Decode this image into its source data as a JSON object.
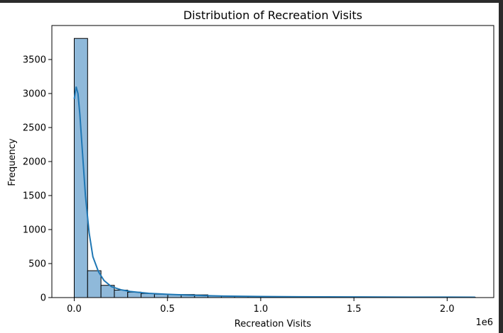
{
  "chart_data": {
    "type": "bar",
    "title": "Distribution of Recreation Visits",
    "xlabel": "Recreation Visits",
    "ylabel": "Frequency",
    "x_offset_label": "1e6",
    "xlim": [
      -120000,
      2250000
    ],
    "ylim": [
      0,
      4000
    ],
    "x_ticks": [
      0,
      500000,
      1000000,
      1500000,
      2000000
    ],
    "x_tick_labels": [
      "0.0",
      "0.5",
      "1.0",
      "1.5",
      "2.0"
    ],
    "y_ticks": [
      0,
      500,
      1000,
      1500,
      2000,
      2500,
      3000,
      3500
    ],
    "y_tick_labels": [
      "0",
      "500",
      "1000",
      "1500",
      "2000",
      "2500",
      "3000",
      "3500"
    ],
    "bin_start": 0,
    "bin_width": 71700,
    "values": [
      3810,
      395,
      180,
      110,
      80,
      60,
      50,
      45,
      45,
      40,
      25,
      20,
      18,
      15,
      15,
      12,
      10,
      10,
      9,
      8,
      8,
      7,
      7,
      6,
      6,
      5,
      5,
      5,
      4,
      4
    ],
    "kde": {
      "x": [
        0,
        10000,
        20000,
        30000,
        45000,
        60000,
        80000,
        100000,
        130000,
        160000,
        200000,
        250000,
        300000,
        350000,
        400000,
        500000,
        600000,
        700000,
        800000,
        1000000,
        1200000,
        1500000,
        1800000,
        2000000,
        2150000
      ],
      "y": [
        2920,
        3100,
        3000,
        2700,
        2100,
        1500,
        950,
        600,
        380,
        250,
        160,
        115,
        90,
        75,
        62,
        48,
        38,
        28,
        22,
        16,
        12,
        9,
        7,
        6,
        5
      ]
    },
    "colors": {
      "bar_fill": "#8fb9da",
      "bar_edge": "#000000",
      "kde_line": "#1f77b4"
    },
    "grid": false
  }
}
